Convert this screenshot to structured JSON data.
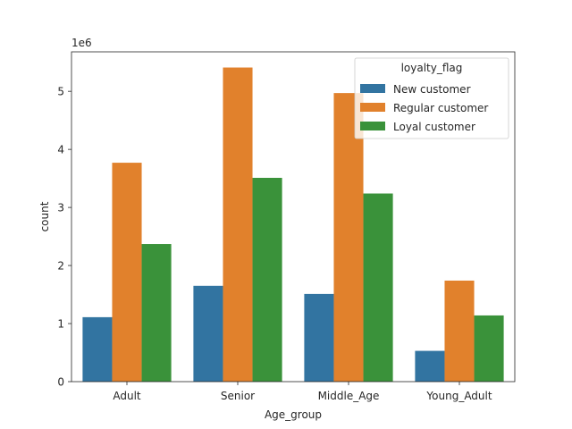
{
  "chart_data": {
    "type": "bar",
    "categories": [
      "Adult",
      "Senior",
      "Middle_Age",
      "Young_Adult"
    ],
    "series": [
      {
        "name": "New customer",
        "color": "#3274a1",
        "values": [
          1110000,
          1650000,
          1510000,
          530000
        ]
      },
      {
        "name": "Regular customer",
        "color": "#e1812c",
        "values": [
          3770000,
          5410000,
          4970000,
          1740000
        ]
      },
      {
        "name": "Loyal customer",
        "color": "#3a923a",
        "values": [
          2370000,
          3510000,
          3240000,
          1140000
        ]
      }
    ],
    "xlabel": "Age_group",
    "ylabel": "count",
    "ylim": [
      0,
      5680000
    ],
    "yticks": [
      0,
      1,
      2,
      3,
      4,
      5
    ],
    "ytick_scale": 1000000,
    "offset_text": "1e6",
    "legend": {
      "title": "loyalty_flag",
      "placement": "upper right"
    },
    "grid": false
  }
}
